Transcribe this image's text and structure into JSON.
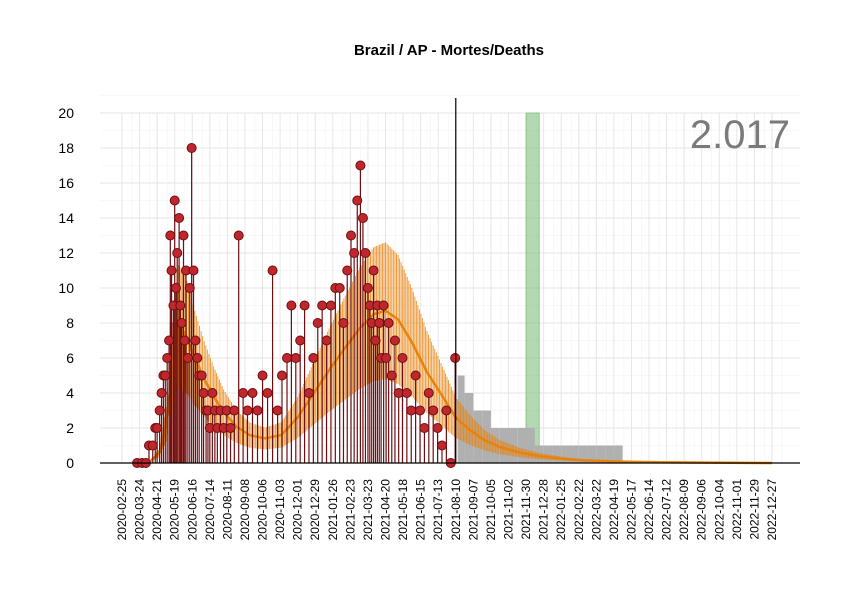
{
  "chart_data": {
    "type": "line",
    "title": "Brazil / AP - Mortes/Deaths",
    "total_label": "2.017",
    "ylim": [
      0,
      20
    ],
    "yticks": [
      0,
      2,
      4,
      6,
      8,
      10,
      12,
      14,
      16,
      18,
      20
    ],
    "x_start": "2020-02-25",
    "x_end": "2022-12-27",
    "xtick_labels": [
      "2020-02-25",
      "2020-03-24",
      "2020-04-21",
      "2020-05-19",
      "2020-06-16",
      "2020-07-14",
      "2020-08-11",
      "2020-09-08",
      "2020-10-06",
      "2020-11-03",
      "2020-12-01",
      "2020-12-29",
      "2021-01-26",
      "2021-02-23",
      "2021-03-23",
      "2021-04-20",
      "2021-05-18",
      "2021-06-15",
      "2021-07-13",
      "2021-08-10",
      "2021-09-07",
      "2021-10-05",
      "2021-11-02",
      "2021-11-30",
      "2021-12-28",
      "2022-01-25",
      "2022-02-22",
      "2022-03-22",
      "2022-04-19",
      "2022-05-17",
      "2022-06-14",
      "2022-07-12",
      "2022-08-09",
      "2022-09-06",
      "2022-10-04",
      "2022-11-01",
      "2022-11-29",
      "2022-12-27"
    ],
    "grid": true,
    "current_date": "2021-08-10",
    "highlight_periods": [
      {
        "start": "2020-05-12",
        "end": "2020-06-01",
        "color": "#c0392b"
      },
      {
        "start": "2021-11-30",
        "end": "2021-12-21",
        "color": "#7fbf7f"
      }
    ],
    "colors": {
      "points": "#c0272d",
      "point_stroke": "#6b0f12",
      "fit_line": "#e8820c",
      "projection": "#b0b0b0",
      "axis": "#000000",
      "grid": "#e6e6e6"
    },
    "series": [
      {
        "name": "",
        "kind": "daily_deaths",
        "x": [
          "2020-03-20",
          "2020-03-28",
          "2020-04-03",
          "2020-04-08",
          "2020-04-14",
          "2020-04-18",
          "2020-04-21",
          "2020-04-25",
          "2020-04-28",
          "2020-05-01",
          "2020-05-04",
          "2020-05-07",
          "2020-05-10",
          "2020-05-12",
          "2020-05-14",
          "2020-05-17",
          "2020-05-19",
          "2020-05-21",
          "2020-05-23",
          "2020-05-26",
          "2020-05-28",
          "2020-05-30",
          "2020-06-02",
          "2020-06-04",
          "2020-06-06",
          "2020-06-09",
          "2020-06-12",
          "2020-06-15",
          "2020-06-18",
          "2020-06-21",
          "2020-06-24",
          "2020-06-27",
          "2020-07-01",
          "2020-07-04",
          "2020-07-08",
          "2020-07-11",
          "2020-07-14",
          "2020-07-18",
          "2020-07-22",
          "2020-07-26",
          "2020-07-31",
          "2020-08-05",
          "2020-08-10",
          "2020-08-16",
          "2020-08-22",
          "2020-08-29",
          "2020-09-05",
          "2020-09-12",
          "2020-09-20",
          "2020-09-28",
          "2020-10-06",
          "2020-10-14",
          "2020-10-22",
          "2020-10-30",
          "2020-11-06",
          "2020-11-14",
          "2020-11-21",
          "2020-11-28",
          "2020-12-05",
          "2020-12-12",
          "2020-12-19",
          "2020-12-26",
          "2021-01-02",
          "2021-01-09",
          "2021-01-16",
          "2021-01-23",
          "2021-01-30",
          "2021-02-06",
          "2021-02-12",
          "2021-02-18",
          "2021-02-24",
          "2021-03-01",
          "2021-03-06",
          "2021-03-11",
          "2021-03-15",
          "2021-03-19",
          "2021-03-23",
          "2021-03-26",
          "2021-03-29",
          "2021-04-01",
          "2021-04-04",
          "2021-04-07",
          "2021-04-10",
          "2021-04-13",
          "2021-04-17",
          "2021-04-21",
          "2021-04-25",
          "2021-04-30",
          "2021-05-05",
          "2021-05-11",
          "2021-05-17",
          "2021-05-24",
          "2021-05-31",
          "2021-06-07",
          "2021-06-14",
          "2021-06-21",
          "2021-06-28",
          "2021-07-05",
          "2021-07-12",
          "2021-07-19",
          "2021-07-26",
          "2021-08-02",
          "2021-08-09"
        ],
        "values": [
          0,
          0,
          0,
          1,
          1,
          2,
          2,
          3,
          4,
          5,
          5,
          6,
          7,
          13,
          11,
          9,
          15,
          10,
          12,
          14,
          9,
          8,
          13,
          7,
          11,
          6,
          10,
          18,
          11,
          7,
          6,
          5,
          5,
          4,
          3,
          3,
          2,
          4,
          3,
          2,
          3,
          2,
          3,
          2,
          3,
          13,
          4,
          3,
          4,
          3,
          5,
          4,
          11,
          3,
          5,
          6,
          9,
          6,
          7,
          9,
          4,
          6,
          8,
          9,
          7,
          9,
          10,
          10,
          8,
          11,
          13,
          12,
          15,
          17,
          14,
          12,
          10,
          9,
          8,
          11,
          7,
          9,
          8,
          6,
          9,
          6,
          8,
          5,
          7,
          4,
          6,
          4,
          3,
          5,
          3,
          2,
          4,
          3,
          2,
          1,
          3,
          0,
          6
        ]
      },
      {
        "name": "",
        "kind": "fitted_trend",
        "x": [
          "2020-03-15",
          "2020-04-10",
          "2020-04-25",
          "2020-05-05",
          "2020-05-15",
          "2020-05-25",
          "2020-06-05",
          "2020-06-20",
          "2020-07-05",
          "2020-07-20",
          "2020-08-05",
          "2020-08-25",
          "2020-09-15",
          "2020-10-10",
          "2020-11-05",
          "2020-12-01",
          "2020-12-25",
          "2021-01-20",
          "2021-02-15",
          "2021-03-10",
          "2021-04-01",
          "2021-04-20",
          "2021-05-10",
          "2021-06-01",
          "2021-06-25",
          "2021-07-20",
          "2021-08-10",
          "2021-09-01",
          "2021-09-25",
          "2021-10-20",
          "2021-11-20",
          "2021-12-20",
          "2022-01-25",
          "2022-03-01",
          "2022-05-01",
          "2022-07-01",
          "2022-12-27"
        ],
        "values": [
          0.0,
          0.1,
          0.6,
          2.2,
          5.2,
          7.8,
          7.4,
          6.0,
          4.8,
          3.8,
          2.9,
          2.1,
          1.6,
          1.4,
          1.6,
          2.6,
          3.9,
          5.3,
          6.6,
          7.7,
          8.5,
          8.7,
          8.2,
          6.9,
          5.2,
          3.8,
          2.6,
          1.9,
          1.3,
          0.9,
          0.6,
          0.4,
          0.25,
          0.15,
          0.08,
          0.04,
          0.0
        ]
      },
      {
        "name": "",
        "kind": "projection",
        "x": [
          "2021-08-13",
          "2021-08-24",
          "2021-09-07",
          "2021-09-21",
          "2021-10-05",
          "2021-10-19",
          "2021-11-02",
          "2021-11-16",
          "2021-11-30",
          "2021-12-14",
          "2021-12-28",
          "2022-01-11",
          "2022-01-25",
          "2022-02-08",
          "2022-02-22",
          "2022-03-08",
          "2022-03-22",
          "2022-04-05",
          "2022-04-19",
          "2022-05-03",
          "2022-05-17",
          "2022-05-31"
        ],
        "values": [
          5,
          4,
          3,
          3,
          2,
          2,
          2,
          2,
          2,
          1,
          1,
          1,
          1,
          1,
          1,
          1,
          1,
          1,
          1,
          0,
          0,
          0
        ]
      }
    ]
  }
}
